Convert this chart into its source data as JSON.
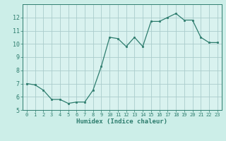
{
  "x": [
    0,
    1,
    2,
    3,
    4,
    5,
    6,
    7,
    8,
    9,
    10,
    11,
    12,
    13,
    14,
    15,
    16,
    17,
    18,
    19,
    20,
    21,
    22,
    23
  ],
  "y": [
    7.0,
    6.9,
    6.5,
    5.8,
    5.8,
    5.5,
    5.6,
    5.6,
    6.5,
    8.3,
    10.5,
    10.4,
    9.8,
    10.5,
    9.8,
    11.7,
    11.7,
    12.0,
    12.3,
    11.8,
    11.8,
    10.5,
    10.1,
    10.1
  ],
  "line_color": "#2e7d6e",
  "marker_color": "#2e7d6e",
  "bg_color": "#cceee8",
  "grid_color": "#aacccc",
  "plot_bg_color": "#d9f2ef",
  "axis_color": "#2e7d6e",
  "xlabel": "Humidex (Indice chaleur)",
  "ylim": [
    5,
    13
  ],
  "xlim": [
    -0.5,
    23.5
  ],
  "yticks": [
    5,
    6,
    7,
    8,
    9,
    10,
    11,
    12
  ],
  "xticks": [
    0,
    1,
    2,
    3,
    4,
    5,
    6,
    7,
    8,
    9,
    10,
    11,
    12,
    13,
    14,
    15,
    16,
    17,
    18,
    19,
    20,
    21,
    22,
    23
  ],
  "font_color": "#2e7d6e",
  "font_family": "monospace"
}
